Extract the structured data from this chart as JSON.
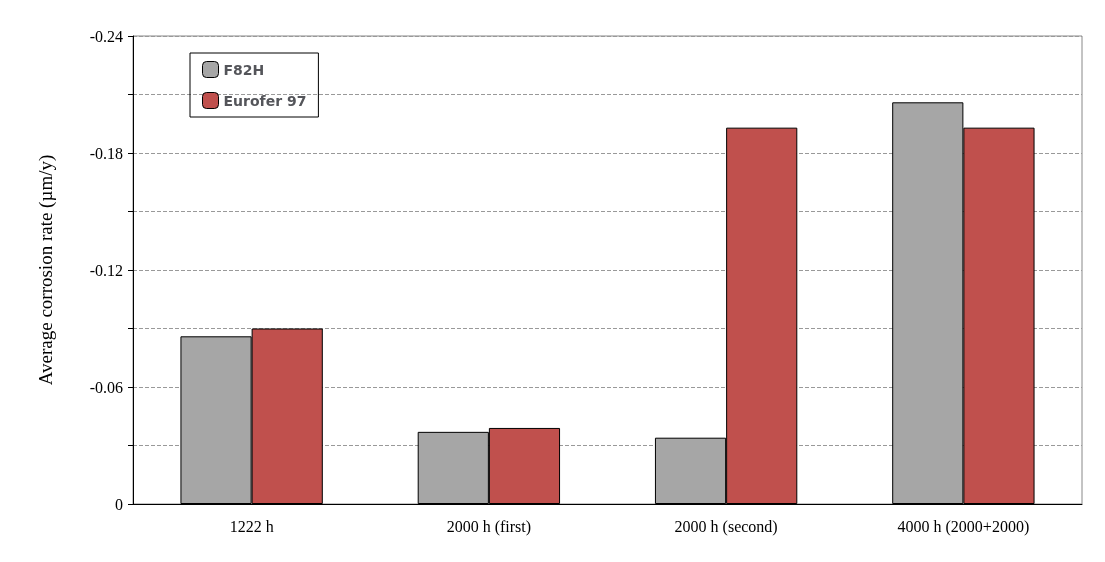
{
  "chart_data": {
    "type": "bar",
    "ylabel": "Average corrosion rate (µm/y)",
    "categories": [
      "1222 h",
      "2000 h (first)",
      "2000 h (second)",
      "4000 h (2000+2000)"
    ],
    "series": [
      {
        "name": "F82H",
        "color": "#a6a6a6",
        "values": [
          -0.086,
          -0.037,
          -0.034,
          -0.206
        ]
      },
      {
        "name": "Eurofer 97",
        "color": "#c0504d",
        "values": [
          -0.09,
          -0.039,
          -0.193,
          -0.193
        ]
      }
    ],
    "ylim": [
      0,
      -0.24
    ],
    "yticks": [
      0,
      {
        "value": -0.03,
        "label": null
      },
      -0.06,
      {
        "value": -0.09,
        "label": null
      },
      -0.12,
      {
        "value": -0.15,
        "label": null
      },
      -0.18,
      {
        "value": -0.21,
        "label": null
      },
      -0.24
    ],
    "grid": "y",
    "legend": "top left"
  }
}
